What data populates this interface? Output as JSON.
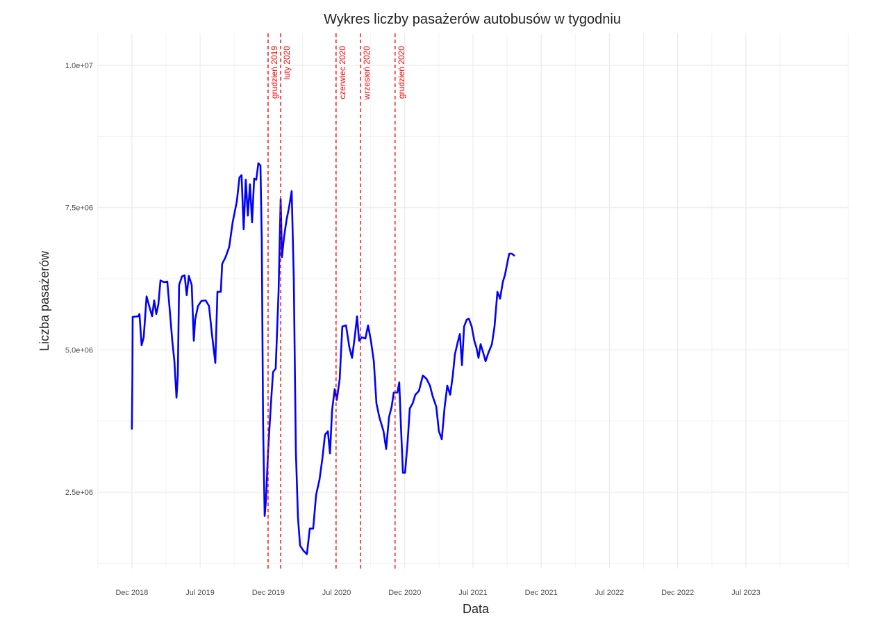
{
  "chart_data": {
    "type": "line",
    "title": "Wykres liczby pasażerów autobusów w tygodniu",
    "x_label": "Data",
    "y_label": "Liczba pasażerów",
    "color": "#0000ff",
    "grid": true,
    "xlim": [
      -13.2,
      273.2
    ],
    "ylim": [
      1157000,
      10562000
    ],
    "xticks": [
      {
        "value": 0,
        "label": "Dec 2018"
      },
      {
        "value": 26,
        "label": "Jul 2019"
      },
      {
        "value": 52,
        "label": "Dec 2019"
      },
      {
        "value": 78,
        "label": "Jul 2020"
      },
      {
        "value": 104,
        "label": "Dec 2020"
      },
      {
        "value": 130,
        "label": "Jul 2021"
      },
      {
        "value": 156,
        "label": "Dec 2021"
      },
      {
        "value": 182,
        "label": "Jul 2022"
      },
      {
        "value": 208,
        "label": "Dec 2022"
      },
      {
        "value": 234,
        "label": "Jul 2023"
      }
    ],
    "yticks": [
      {
        "value": 2500000,
        "label": "2.5e+06"
      },
      {
        "value": 5000000,
        "label": "5.0e+06"
      },
      {
        "value": 7500000,
        "label": "7.5e+06"
      },
      {
        "value": 10000000,
        "label": "1.0e+07"
      }
    ],
    "annotations": [
      {
        "x": 51.9,
        "label": "grudzień 2019"
      },
      {
        "x": 56.7,
        "label": "luty 2020"
      },
      {
        "x": 77.8,
        "label": "czerwiec 2020"
      },
      {
        "x": 87.1,
        "label": "wrzesień 2020"
      },
      {
        "x": 100.3,
        "label": "grudzień 2020"
      }
    ],
    "x": [
      0,
      0.2,
      0.3,
      2.4,
      2.9,
      3.7,
      4.5,
      5.6,
      6.6,
      7.7,
      8.5,
      9.3,
      10.1,
      10.9,
      12.2,
      13.5,
      14.3,
      15.4,
      16.2,
      17.0,
      17.5,
      18.0,
      19.1,
      20.1,
      20.9,
      21.7,
      22.8,
      23.6,
      24.1,
      25.2,
      26.5,
      28.1,
      29.4,
      30.5,
      31.8,
      32.6,
      33.9,
      34.4,
      35.7,
      37.1,
      38.4,
      40.0,
      41.0,
      41.8,
      42.6,
      43.4,
      44.2,
      45.0,
      45.8,
      46.6,
      47.4,
      48.2,
      49.0,
      49.5,
      50.0,
      50.6,
      51.1,
      51.9,
      53.0,
      53.8,
      54.8,
      55.9,
      56.7,
      57.2,
      58.0,
      59.0,
      59.8,
      60.9,
      61.7,
      62.5,
      63.3,
      64.1,
      65.4,
      66.7,
      67.8,
      69.1,
      70.2,
      71.5,
      72.6,
      73.6,
      74.7,
      75.5,
      76.3,
      77.3,
      78.1,
      79.2,
      80.2,
      81.6,
      82.9,
      83.9,
      85.0,
      85.8,
      86.6,
      87.6,
      89.0,
      90.0,
      91.1,
      92.2,
      93.2,
      94.3,
      95.9,
      96.9,
      98.0,
      99.0,
      99.8,
      101.2,
      101.9,
      102.5,
      103.3,
      104.1,
      105.1,
      105.9,
      107.0,
      108.0,
      109.4,
      110.9,
      112.3,
      113.6,
      114.6,
      116.0,
      117.0,
      118.1,
      119.2,
      120.2,
      121.3,
      122.3,
      123.1,
      124.2,
      125.0,
      125.8,
      126.6,
      127.6,
      128.4,
      129.5,
      130.5,
      131.3,
      132.1,
      132.9,
      133.7,
      134.8,
      135.8,
      137.2,
      138.2,
      139.3,
      140.3,
      141.4,
      142.2,
      143.0,
      143.8,
      144.8,
      145.9
    ],
    "values": [
      3600000,
      4550000,
      5580000,
      5590000,
      5630000,
      5080000,
      5220000,
      5940000,
      5770000,
      5590000,
      5870000,
      5630000,
      5800000,
      6220000,
      6190000,
      6200000,
      5770000,
      5160000,
      4800000,
      4160000,
      4550000,
      6140000,
      6290000,
      6310000,
      5960000,
      6300000,
      6140000,
      5160000,
      5530000,
      5770000,
      5860000,
      5870000,
      5770000,
      5280000,
      4770000,
      6020000,
      6020000,
      6510000,
      6630000,
      6810000,
      7240000,
      7610000,
      8030000,
      8070000,
      7120000,
      7990000,
      7360000,
      7910000,
      7240000,
      8010000,
      7990000,
      8280000,
      8240000,
      6930000,
      3700000,
      2080000,
      2350000,
      3210000,
      4060000,
      4610000,
      4670000,
      6020000,
      7650000,
      6630000,
      6990000,
      7300000,
      7480000,
      7790000,
      6260000,
      3210000,
      2050000,
      1560000,
      1470000,
      1410000,
      1860000,
      1860000,
      2450000,
      2720000,
      3090000,
      3510000,
      3570000,
      3180000,
      3940000,
      4310000,
      4120000,
      4490000,
      5410000,
      5430000,
      5040000,
      4860000,
      5250000,
      5590000,
      5160000,
      5220000,
      5200000,
      5430000,
      5160000,
      4800000,
      4060000,
      3820000,
      3570000,
      3260000,
      3820000,
      4000000,
      4250000,
      4250000,
      4430000,
      3700000,
      2840000,
      2840000,
      3390000,
      3970000,
      4060000,
      4210000,
      4280000,
      4550000,
      4490000,
      4370000,
      4190000,
      4000000,
      3570000,
      3430000,
      4000000,
      4370000,
      4210000,
      4550000,
      4920000,
      5140000,
      5280000,
      4730000,
      5410000,
      5530000,
      5550000,
      5410000,
      5160000,
      5040000,
      4860000,
      5100000,
      4980000,
      4800000,
      4940000,
      5100000,
      5410000,
      6020000,
      5900000,
      6200000,
      6320000,
      6510000,
      6690000,
      6690000,
      6650000
    ]
  }
}
